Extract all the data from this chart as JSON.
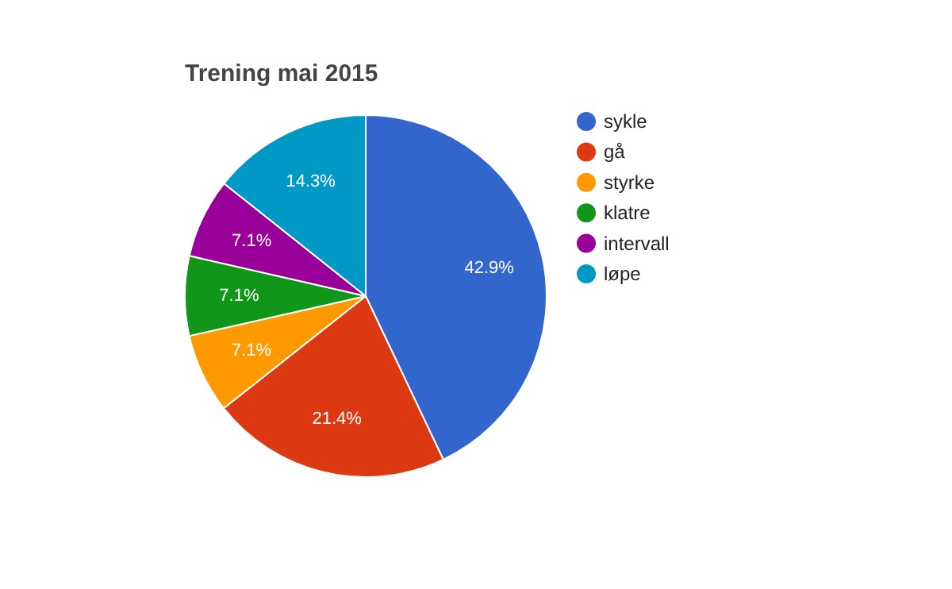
{
  "chart_data": {
    "type": "pie",
    "title": "Trening mai 2015",
    "categories": [
      "sykle",
      "gå",
      "styrke",
      "klatre",
      "intervall",
      "løpe"
    ],
    "values": [
      42.9,
      21.4,
      7.1,
      7.1,
      7.1,
      14.3
    ],
    "colors": [
      "#3366cc",
      "#dc3912",
      "#ff9900",
      "#109618",
      "#990099",
      "#0099c6"
    ],
    "value_labels": [
      "42.9%",
      "21.4%",
      "7.1%",
      "7.1%",
      "7.1%",
      "14.3%"
    ],
    "legend": "right"
  }
}
